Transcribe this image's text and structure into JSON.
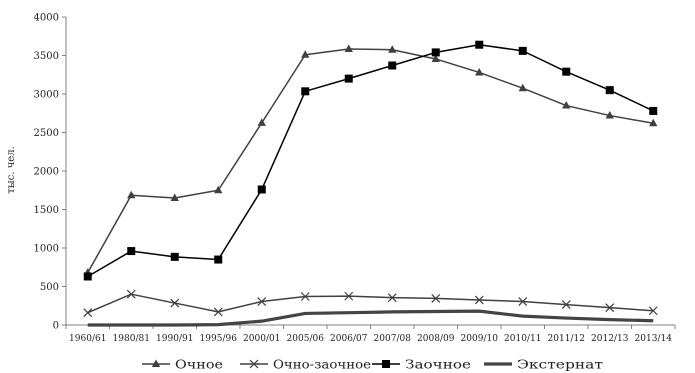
{
  "chart_data": {
    "type": "line",
    "ylabel": "тыс. чел.",
    "ylim": [
      0,
      4000
    ],
    "yticks": [
      0,
      500,
      1000,
      1500,
      2000,
      2500,
      3000,
      3500,
      4000
    ],
    "grid": false,
    "legend_position": "bottom",
    "categories": [
      "1960/61",
      "1980/81",
      "1990/91",
      "1995/96",
      "2000/01",
      "2005/06",
      "2006/07",
      "2007/08",
      "2008/09",
      "2009/10",
      "2010/11",
      "2011/12",
      "2012/13",
      "2013/14"
    ],
    "series": [
      {
        "name": "Очное",
        "marker": "triangle",
        "color": "#404040",
        "values": [
          680,
          1685,
          1650,
          1750,
          2625,
          3510,
          3585,
          3575,
          3455,
          3280,
          3075,
          2850,
          2720,
          2620
        ]
      },
      {
        "name": "Очно-заочное",
        "marker": "x",
        "color": "#404040",
        "values": [
          160,
          400,
          285,
          170,
          305,
          370,
          375,
          355,
          345,
          325,
          305,
          265,
          225,
          185
        ]
      },
      {
        "name": "Заочное",
        "marker": "square",
        "color": "#000000",
        "values": [
          630,
          960,
          885,
          850,
          1760,
          3035,
          3200,
          3370,
          3540,
          3640,
          3560,
          3290,
          3050,
          2780
        ]
      },
      {
        "name": "Экстернат",
        "marker": "none",
        "color": "#444444",
        "values": [
          0,
          0,
          0,
          5,
          50,
          150,
          160,
          170,
          175,
          180,
          115,
          90,
          70,
          55
        ]
      }
    ]
  }
}
